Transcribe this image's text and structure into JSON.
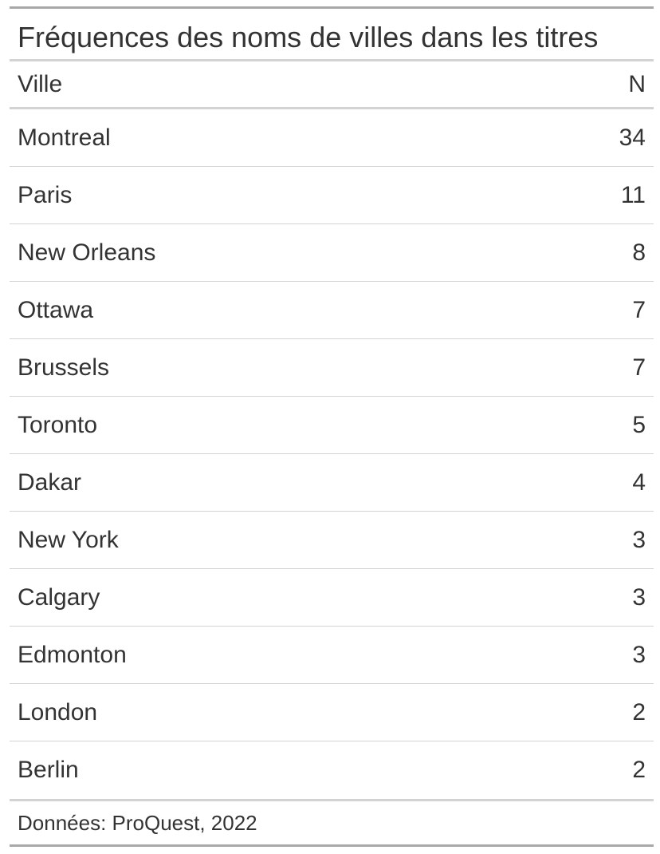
{
  "chart_data": {
    "type": "table",
    "title": "Fréquences des noms de villes dans les titres",
    "columns": [
      "Ville",
      "N"
    ],
    "rows": [
      {
        "ville": "Montreal",
        "n": "34"
      },
      {
        "ville": "Paris",
        "n": "11"
      },
      {
        "ville": "New Orleans",
        "n": "8"
      },
      {
        "ville": "Ottawa",
        "n": "7"
      },
      {
        "ville": "Brussels",
        "n": "7"
      },
      {
        "ville": "Toronto",
        "n": "5"
      },
      {
        "ville": "Dakar",
        "n": "4"
      },
      {
        "ville": "New York",
        "n": "3"
      },
      {
        "ville": "Calgary",
        "n": "3"
      },
      {
        "ville": "Edmonton",
        "n": "3"
      },
      {
        "ville": "London",
        "n": "2"
      },
      {
        "ville": "Berlin",
        "n": "2"
      }
    ],
    "source_note": "Données: ProQuest, 2022"
  },
  "colors": {
    "text": "#333333",
    "outer_rule": "#a8a8a8",
    "inner_rule": "#d3d3d3"
  }
}
